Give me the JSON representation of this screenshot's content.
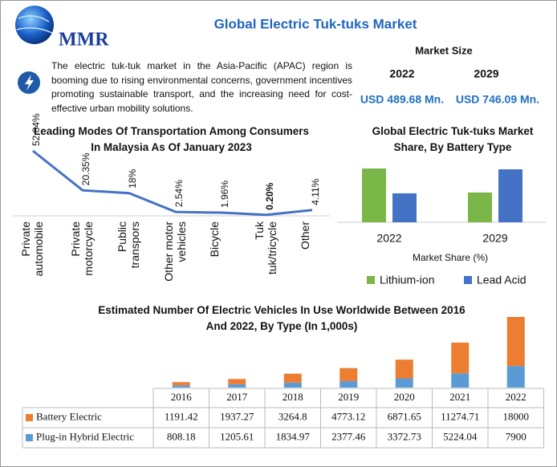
{
  "header": {
    "logo": "MMR",
    "title": "Global Electric Tuk-tuks Market"
  },
  "description": "The electric tuk-tuk market in the Asia-Pacific (APAC) region is booming due to rising environmental concerns, government incentives promoting sustainable transport, and the increasing need for cost-effective urban mobility solutions.",
  "market_size": {
    "label": "Market Size",
    "years": [
      "2022",
      "2029"
    ],
    "values": [
      "USD 489.68 Mn.",
      "USD 746.09 Mn."
    ]
  },
  "chart_data": [
    {
      "type": "line",
      "title": "Leading Modes Of Transportation Among Consumers In Malaysia As Of January 2023",
      "categories": [
        "Private automobile",
        "Private motorcycle",
        "Public transpors",
        "Other motor vehicles",
        "Bicycle",
        "Tuk tuk/tricycle",
        "Other"
      ],
      "values": [
        52.84,
        20.35,
        18,
        2.54,
        1.96,
        0.2,
        4.11
      ],
      "value_labels": [
        "52.84%",
        "20.35%",
        "18%",
        "2.54%",
        "1.96%",
        "0.20%",
        "4.11%"
      ],
      "color": "#4472c4"
    },
    {
      "type": "bar",
      "title": "Global Electric Tuk-tuks Market Share, By Battery Type",
      "categories": [
        "2022",
        "2029"
      ],
      "xlabel": "Market Share (%)",
      "series": [
        {
          "name": "Lithium-ion",
          "color": "#7ab648",
          "values": [
            65,
            36
          ]
        },
        {
          "name": "Lead Acid",
          "color": "#4472c4",
          "values": [
            35,
            64
          ]
        }
      ]
    },
    {
      "type": "stacked_bar",
      "title": "Estimated Number Of Electric Vehicles In Use Worldwide Between 2016 And 2022, By Type (In 1,000s)",
      "categories": [
        "2016",
        "2017",
        "2018",
        "2019",
        "2020",
        "2021",
        "2022"
      ],
      "series": [
        {
          "name": "Battery Electric",
          "color": "#ed7d31",
          "values": [
            1191.42,
            1937.27,
            3264.8,
            4773.12,
            6871.65,
            11274.71,
            18000
          ]
        },
        {
          "name": "Plug-in Hybrid Electric",
          "color": "#5b9bd5",
          "values": [
            808.18,
            1205.61,
            1834.97,
            2377.46,
            3372.73,
            5224.04,
            7900
          ]
        }
      ]
    }
  ]
}
